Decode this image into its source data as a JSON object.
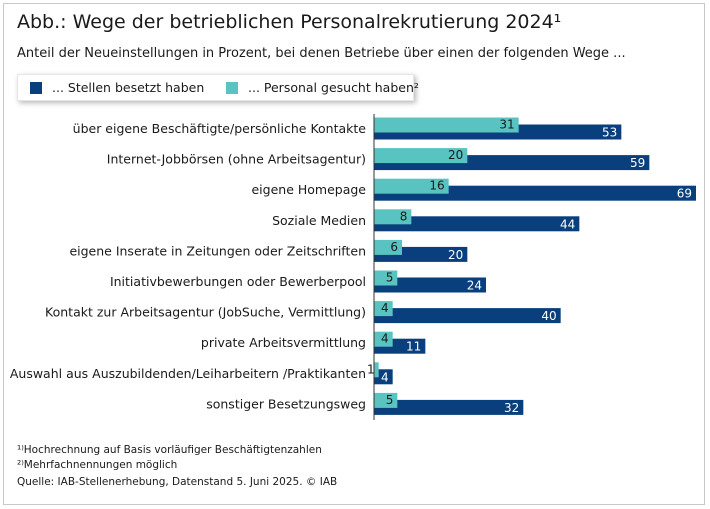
{
  "title": "Abb.: Wege der betrieblichen Personalrekrutierung 2024¹",
  "subtitle": "Anteil der Neueinstellungen in Prozent, bei denen Betriebe über einen der folgenden Wege ...",
  "colors": {
    "dark": "#0a3f7d",
    "light": "#58c3c1",
    "axis": "#333333"
  },
  "chart_data": {
    "type": "bar",
    "orientation": "horizontal",
    "title": "Wege der betrieblichen Personalrekrutierung 2024",
    "xlabel": "",
    "ylabel": "",
    "xlim": [
      0,
      70
    ],
    "categories": [
      "über eigene Beschäftigte/persönliche Kontakte",
      "Internet-Jobbörsen (ohne Arbeitsagentur)",
      "eigene Homepage",
      "Soziale Medien",
      "eigene Inserate in Zeitungen oder Zeitschriften",
      "Initiativbewerbungen oder Bewerberpool",
      "Kontakt zur Arbeitsagentur (JobSuche, Vermittlung)",
      "private Arbeitsvermittlung",
      "Auswahl aus Auszubildenden/Leiharbeitern /Praktikanten",
      "sonstiger Besetzungsweg"
    ],
    "series": [
      {
        "name": "... Stellen besetzt haben",
        "values": [
          53,
          59,
          69,
          44,
          20,
          24,
          40,
          11,
          4,
          32
        ]
      },
      {
        "name": "... Personal gesucht haben²",
        "values": [
          31,
          20,
          16,
          8,
          6,
          5,
          4,
          4,
          1,
          5
        ]
      }
    ],
    "legend": "top-left"
  },
  "footnotes": [
    "¹⁾Hochrechnung auf Basis vorläufiger Beschäftigtenzahlen",
    "²⁾Mehrfachnennungen möglich",
    "Quelle: IAB-Stellenerhebung, Datenstand 5. Juni 2025. © IAB"
  ]
}
